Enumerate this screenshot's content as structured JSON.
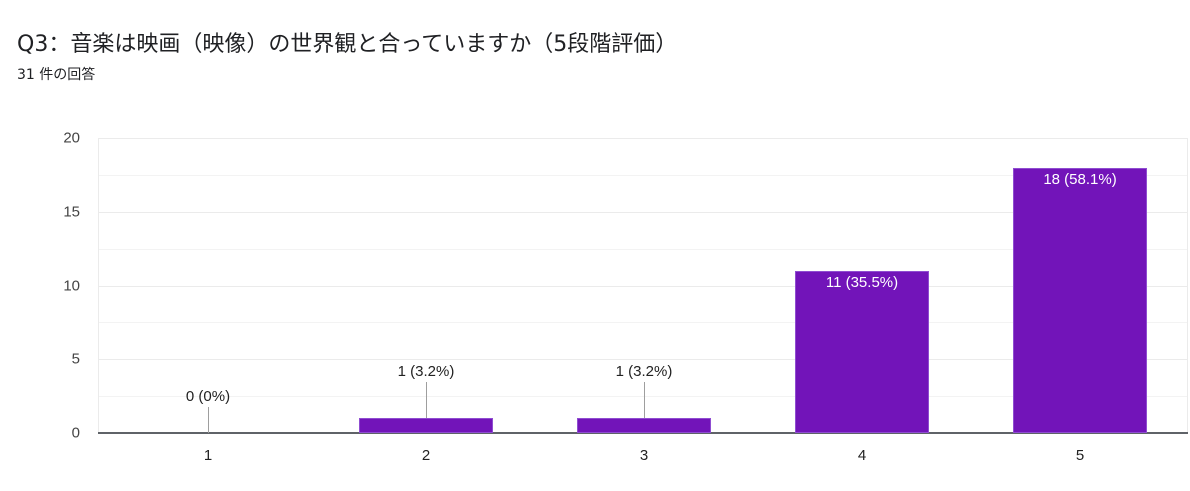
{
  "header": {
    "title": "Q3：音楽は映画（映像）の世界観と合っていますか（5段階評価）",
    "response_count": "31 件の回答"
  },
  "colors": {
    "bar": "#7214b9",
    "grid": "#ebebeb",
    "axis": "#5f6368"
  },
  "chart_data": {
    "type": "bar",
    "title": "Q3：音楽は映画（映像）の世界観と合っていますか（5段階評価）",
    "subtitle": "31 件の回答",
    "categories": [
      "1",
      "2",
      "3",
      "4",
      "5"
    ],
    "values": [
      0,
      1,
      1,
      11,
      18
    ],
    "percentages": [
      "0%",
      "3.2%",
      "3.2%",
      "35.5%",
      "58.1%"
    ],
    "data_labels": [
      "0 (0%)",
      "1 (3.2%)",
      "1 (3.2%)",
      "11 (35.5%)",
      "18 (58.1%)"
    ],
    "xlabel": "",
    "ylabel": "",
    "ylim": [
      0,
      20
    ],
    "yticks": [
      "0",
      "5",
      "10",
      "15",
      "20"
    ],
    "grid": true,
    "legend": "none"
  }
}
